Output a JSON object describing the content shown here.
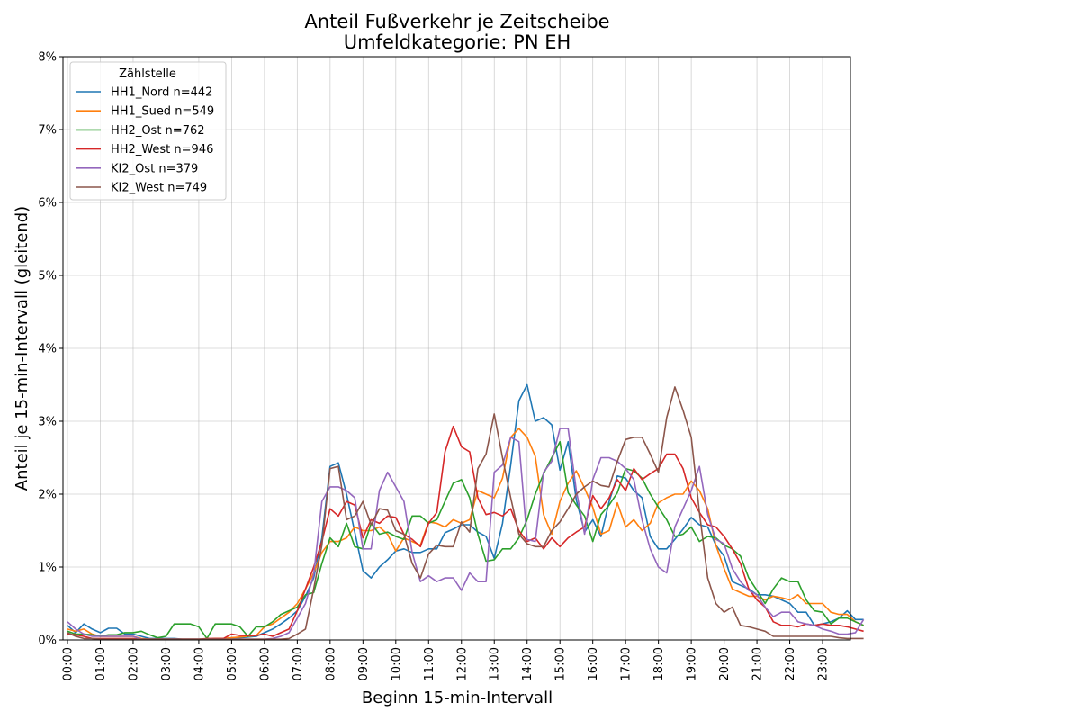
{
  "chart_data": {
    "type": "line",
    "title": "Anteil Fußverkehr je Zeitscheibe",
    "subtitle": "Umfeldkategorie: PN EH",
    "xlabel": "Beginn 15-min-Intervall",
    "ylabel": "Anteil je 15-min-Intervall (gleitend)",
    "ylim": [
      0,
      8
    ],
    "y_ticks": [
      "0%",
      "1%",
      "2%",
      "3%",
      "4%",
      "5%",
      "6%",
      "7%",
      "8%"
    ],
    "x_ticks": [
      "00:00",
      "01:00",
      "02:00",
      "03:00",
      "04:00",
      "05:00",
      "06:00",
      "07:00",
      "08:00",
      "09:00",
      "10:00",
      "11:00",
      "12:00",
      "13:00",
      "14:00",
      "15:00",
      "16:00",
      "17:00",
      "18:00",
      "19:00",
      "20:00",
      "21:00",
      "22:00",
      "23:00"
    ],
    "intervals_per_tick": 4,
    "grid": true,
    "legend_title": "Zählstelle",
    "legend_position": "top-left",
    "series": [
      {
        "name": "HH1_Nord n=442",
        "color": "#1f77b4",
        "values": [
          0.2,
          0.1,
          0.22,
          0.15,
          0.1,
          0.16,
          0.16,
          0.08,
          0.08,
          0.05,
          0.02,
          0.02,
          0.02,
          0.02,
          0.01,
          0.01,
          0.01,
          0.01,
          0.02,
          0.02,
          0.03,
          0.03,
          0.04,
          0.05,
          0.1,
          0.15,
          0.22,
          0.3,
          0.4,
          0.6,
          0.85,
          1.4,
          2.38,
          2.43,
          2.0,
          1.48,
          0.95,
          0.85,
          1.0,
          1.1,
          1.22,
          1.25,
          1.2,
          1.2,
          1.25,
          1.25,
          1.47,
          1.52,
          1.58,
          1.58,
          1.48,
          1.42,
          1.12,
          1.6,
          2.4,
          3.28,
          3.5,
          3.0,
          3.05,
          2.95,
          2.33,
          2.72,
          1.92,
          1.48,
          1.65,
          1.42,
          1.9,
          2.25,
          2.22,
          2.05,
          1.95,
          1.42,
          1.25,
          1.25,
          1.38,
          1.52,
          1.68,
          1.58,
          1.55,
          1.3,
          1.15,
          0.8,
          0.75,
          0.7,
          0.62,
          0.62,
          0.6,
          0.55,
          0.5,
          0.38,
          0.38,
          0.2,
          0.22,
          0.25,
          0.3,
          0.4,
          0.28,
          0.28
        ]
      },
      {
        "name": "HH1_Sued n=549",
        "color": "#ff7f0e",
        "values": [
          0.15,
          0.12,
          0.15,
          0.08,
          0.05,
          0.05,
          0.05,
          0.05,
          0.05,
          0.02,
          0.01,
          0.01,
          0.01,
          0.01,
          0.01,
          0.01,
          0.01,
          0.01,
          0.02,
          0.02,
          0.03,
          0.04,
          0.05,
          0.06,
          0.18,
          0.22,
          0.3,
          0.38,
          0.5,
          0.7,
          0.92,
          1.2,
          1.35,
          1.35,
          1.4,
          1.55,
          1.5,
          1.5,
          1.55,
          1.45,
          1.22,
          1.4,
          1.35,
          1.3,
          1.62,
          1.6,
          1.55,
          1.65,
          1.6,
          1.65,
          2.05,
          2.0,
          1.95,
          2.22,
          2.78,
          2.9,
          2.78,
          2.52,
          1.72,
          1.45,
          1.9,
          2.15,
          2.32,
          2.08,
          1.82,
          1.45,
          1.5,
          1.88,
          1.55,
          1.65,
          1.5,
          1.6,
          1.88,
          1.95,
          2.0,
          2.0,
          2.18,
          2.05,
          1.8,
          1.3,
          0.98,
          0.7,
          0.65,
          0.6,
          0.6,
          0.55,
          0.6,
          0.58,
          0.55,
          0.62,
          0.5,
          0.5,
          0.5,
          0.38,
          0.35,
          0.35,
          0.25,
          0.2
        ]
      },
      {
        "name": "HH2_Ost n=762",
        "color": "#2ca02c",
        "values": [
          0.12,
          0.08,
          0.08,
          0.07,
          0.05,
          0.07,
          0.07,
          0.1,
          0.1,
          0.12,
          0.07,
          0.03,
          0.05,
          0.22,
          0.22,
          0.22,
          0.18,
          0.02,
          0.22,
          0.22,
          0.22,
          0.18,
          0.05,
          0.18,
          0.18,
          0.25,
          0.35,
          0.4,
          0.45,
          0.62,
          0.65,
          1.05,
          1.4,
          1.28,
          1.6,
          1.28,
          1.25,
          1.6,
          1.45,
          1.48,
          1.42,
          1.38,
          1.7,
          1.7,
          1.6,
          1.65,
          1.9,
          2.15,
          2.2,
          1.95,
          1.45,
          1.08,
          1.1,
          1.25,
          1.25,
          1.4,
          1.65,
          2.0,
          2.28,
          2.5,
          2.72,
          2.02,
          1.85,
          1.7,
          1.35,
          1.72,
          1.85,
          2.02,
          2.35,
          2.32,
          2.22,
          2.0,
          1.82,
          1.65,
          1.42,
          1.45,
          1.55,
          1.35,
          1.42,
          1.4,
          1.3,
          1.25,
          1.15,
          0.85,
          0.68,
          0.5,
          0.7,
          0.85,
          0.8,
          0.8,
          0.55,
          0.4,
          0.38,
          0.22,
          0.3,
          0.3,
          0.25,
          0.2
        ]
      },
      {
        "name": "HH2_West n=946",
        "color": "#d62728",
        "values": [
          0.08,
          0.07,
          0.05,
          0.02,
          0.02,
          0.02,
          0.02,
          0.02,
          0.02,
          0.01,
          0.01,
          0.01,
          0.01,
          0.01,
          0.01,
          0.01,
          0.01,
          0.02,
          0.02,
          0.02,
          0.08,
          0.06,
          0.06,
          0.06,
          0.08,
          0.05,
          0.1,
          0.15,
          0.4,
          0.7,
          1.0,
          1.35,
          1.8,
          1.7,
          1.9,
          1.85,
          1.4,
          1.65,
          1.6,
          1.7,
          1.68,
          1.45,
          1.38,
          1.28,
          1.6,
          1.75,
          2.58,
          2.93,
          2.65,
          2.58,
          1.95,
          1.72,
          1.75,
          1.7,
          1.8,
          1.5,
          1.35,
          1.4,
          1.25,
          1.4,
          1.28,
          1.4,
          1.48,
          1.55,
          1.98,
          1.8,
          1.95,
          2.2,
          2.05,
          2.35,
          2.2,
          2.28,
          2.35,
          2.55,
          2.55,
          2.35,
          1.95,
          1.75,
          1.58,
          1.55,
          1.42,
          1.25,
          1.05,
          0.7,
          0.55,
          0.45,
          0.25,
          0.2,
          0.2,
          0.18,
          0.22,
          0.2,
          0.22,
          0.2,
          0.2,
          0.18,
          0.15,
          0.12
        ]
      },
      {
        "name": "KI2_Ost n=379",
        "color": "#9467bd",
        "values": [
          0.25,
          0.15,
          0.08,
          0.05,
          0.05,
          0.05,
          0.05,
          0.05,
          0.05,
          0.01,
          0.01,
          0.01,
          0.01,
          0.01,
          0.01,
          0.01,
          0.01,
          0.01,
          0.01,
          0.01,
          0.01,
          0.01,
          0.01,
          0.01,
          0.01,
          0.02,
          0.05,
          0.1,
          0.3,
          0.5,
          0.9,
          1.9,
          2.1,
          2.1,
          2.05,
          1.95,
          1.25,
          1.25,
          2.05,
          2.3,
          2.1,
          1.9,
          1.2,
          0.8,
          0.88,
          0.8,
          0.85,
          0.85,
          0.68,
          0.92,
          0.8,
          0.8,
          2.3,
          2.4,
          2.78,
          2.72,
          1.38,
          1.35,
          2.3,
          2.45,
          2.9,
          2.9,
          2.05,
          1.45,
          2.2,
          2.5,
          2.5,
          2.45,
          2.35,
          2.2,
          1.65,
          1.25,
          1.0,
          0.92,
          1.55,
          1.8,
          2.05,
          2.38,
          1.72,
          1.38,
          1.32,
          0.98,
          0.8,
          0.68,
          0.62,
          0.45,
          0.32,
          0.38,
          0.38,
          0.25,
          0.22,
          0.2,
          0.15,
          0.12,
          0.08,
          0.08,
          0.1,
          0.28
        ]
      },
      {
        "name": "KI2_West n=749",
        "color": "#8c564b",
        "values": [
          0.1,
          0.05,
          0.02,
          0.02,
          0.01,
          0.01,
          0.01,
          0.01,
          0.01,
          0.01,
          0.01,
          0.01,
          0.01,
          0.01,
          0.01,
          0.01,
          0.01,
          0.01,
          0.01,
          0.01,
          0.01,
          0.01,
          0.01,
          0.01,
          0.01,
          0.01,
          0.01,
          0.02,
          0.08,
          0.15,
          0.7,
          1.3,
          2.35,
          2.38,
          1.65,
          1.7,
          1.9,
          1.58,
          1.8,
          1.78,
          1.5,
          1.45,
          1.05,
          0.85,
          1.18,
          1.3,
          1.28,
          1.28,
          1.62,
          1.48,
          2.35,
          2.55,
          3.1,
          2.5,
          1.95,
          1.45,
          1.32,
          1.28,
          1.28,
          1.5,
          1.62,
          1.8,
          2.0,
          2.1,
          2.18,
          2.12,
          2.1,
          2.45,
          2.75,
          2.78,
          2.78,
          2.55,
          2.3,
          3.05,
          3.47,
          3.15,
          2.78,
          1.75,
          0.85,
          0.5,
          0.38,
          0.45,
          0.2,
          0.18,
          0.15,
          0.12,
          0.05,
          0.05,
          0.05,
          0.05,
          0.05,
          0.05,
          0.05,
          0.05,
          0.03,
          0.02,
          0.02,
          0.02
        ]
      }
    ]
  }
}
